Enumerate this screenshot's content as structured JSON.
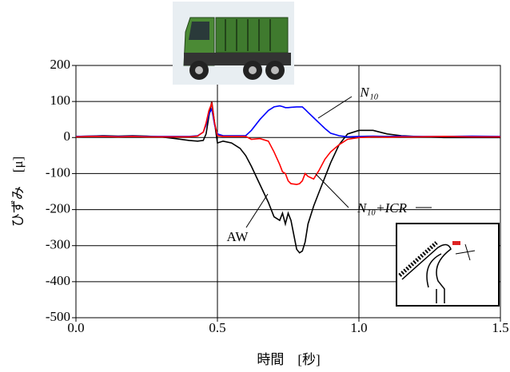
{
  "chart_data": {
    "type": "line",
    "x_label": "時間　[秒]",
    "y_label": "ひずみ　[μ]",
    "x": [
      0,
      0.05,
      0.1,
      0.15,
      0.2,
      0.25,
      0.3,
      0.35,
      0.4,
      0.43,
      0.45,
      0.46,
      0.47,
      0.48,
      0.49,
      0.5,
      0.52,
      0.55,
      0.58,
      0.6,
      0.62,
      0.65,
      0.68,
      0.7,
      0.72,
      0.73,
      0.74,
      0.75,
      0.76,
      0.78,
      0.79,
      0.8,
      0.81,
      0.82,
      0.84,
      0.86,
      0.88,
      0.9,
      0.93,
      0.96,
      1.0,
      1.05,
      1.1,
      1.15,
      1.2,
      1.3,
      1.4,
      1.5
    ],
    "series": [
      {
        "name": "AW",
        "color": "#000000",
        "values": [
          3,
          4,
          5,
          4,
          5,
          4,
          2,
          -3,
          -8,
          -10,
          -8,
          10,
          60,
          100,
          40,
          -15,
          -10,
          -15,
          -30,
          -50,
          -80,
          -130,
          -180,
          -220,
          -230,
          -210,
          -240,
          -210,
          -230,
          -310,
          -320,
          -315,
          -290,
          -240,
          -190,
          -150,
          -110,
          -70,
          -20,
          10,
          20,
          20,
          10,
          5,
          3,
          0,
          0,
          0
        ]
      },
      {
        "name": "N₁₀",
        "color": "#0000ff",
        "values": [
          3,
          4,
          4,
          3,
          4,
          3,
          3,
          3,
          3,
          5,
          15,
          35,
          65,
          80,
          35,
          10,
          5,
          5,
          5,
          5,
          20,
          50,
          75,
          85,
          88,
          86,
          83,
          83,
          84,
          85,
          85,
          85,
          78,
          70,
          55,
          40,
          25,
          12,
          5,
          2,
          3,
          4,
          3,
          4,
          3,
          3,
          4,
          3
        ]
      },
      {
        "name": "N₁₀+ICR",
        "color": "#ff0000",
        "values": [
          2,
          3,
          3,
          2,
          3,
          2,
          2,
          2,
          2,
          4,
          15,
          40,
          75,
          95,
          40,
          5,
          3,
          3,
          3,
          3,
          -5,
          -3,
          -10,
          -40,
          -75,
          -95,
          -100,
          -120,
          -128,
          -130,
          -128,
          -120,
          -100,
          -108,
          -115,
          -90,
          -60,
          -40,
          -20,
          -5,
          0,
          2,
          1,
          2,
          2,
          3,
          2,
          2
        ]
      }
    ],
    "xlim": [
      0,
      1.5
    ],
    "xticks": [
      {
        "value": 0,
        "label": "0.0"
      },
      0.5,
      {
        "value": 1,
        "label": "1.0"
      },
      1.5
    ],
    "ylim": [
      -500,
      200
    ],
    "yticks": [
      200,
      100,
      0,
      -100,
      -200,
      -300,
      -400,
      -500
    ],
    "grid": true
  }
}
